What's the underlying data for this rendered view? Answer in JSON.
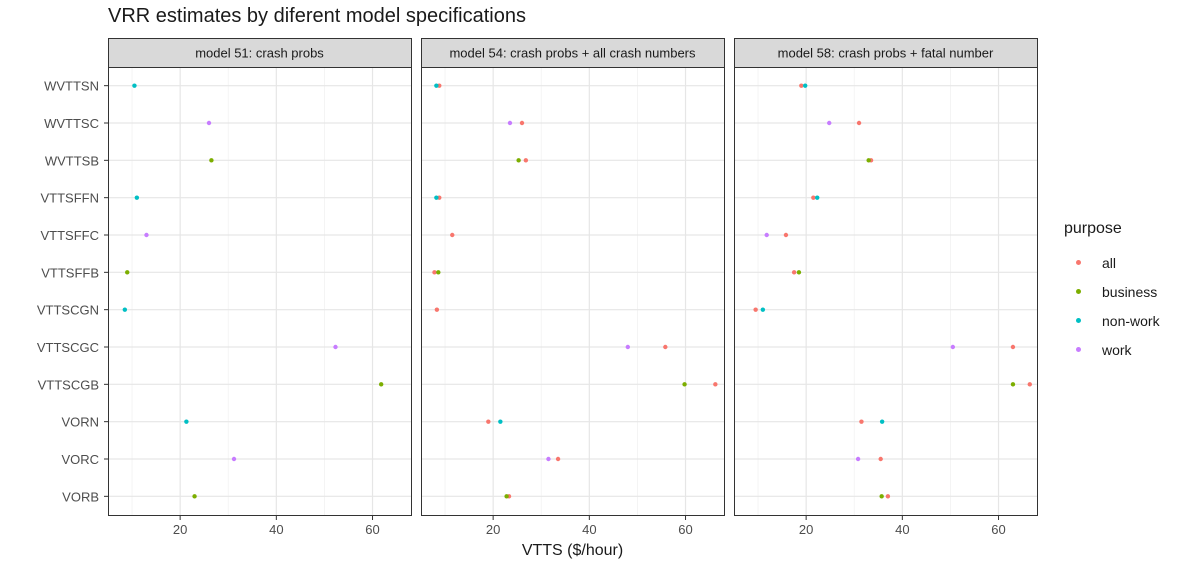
{
  "chart_data": {
    "type": "scatter",
    "title": "VRR estimates by diferent model specifications",
    "xlabel": "VTTS ($/hour)",
    "ylabel": "",
    "xlim": [
      5,
      68
    ],
    "xticks": [
      20,
      40,
      60
    ],
    "categories": [
      "WVTTSN",
      "WVTTSC",
      "WVTTSB",
      "VTTSFFN",
      "VTTSFFC",
      "VTTSFFB",
      "VTTSCGN",
      "VTTSCGC",
      "VTTSCGB",
      "VORN",
      "VORC",
      "VORB"
    ],
    "grid": true,
    "legend": {
      "title": "purpose",
      "position": "right",
      "entries": [
        "all",
        "business",
        "non-work",
        "work"
      ]
    },
    "colors": {
      "all": "#F8766D",
      "business": "#7CAE00",
      "non-work": "#00BFC4",
      "work": "#C77CFF"
    },
    "panels": [
      {
        "title": "model 51: crash probs",
        "points": [
          {
            "y": "WVTTSN",
            "x": 10.5,
            "purpose": "non-work"
          },
          {
            "y": "WVTTSC",
            "x": 26.0,
            "purpose": "work"
          },
          {
            "y": "WVTTSB",
            "x": 26.5,
            "purpose": "business"
          },
          {
            "y": "VTTSFFN",
            "x": 11.0,
            "purpose": "non-work"
          },
          {
            "y": "VTTSFFC",
            "x": 13.0,
            "purpose": "work"
          },
          {
            "y": "VTTSFFB",
            "x": 9.0,
            "purpose": "business"
          },
          {
            "y": "VTTSCGN",
            "x": 8.5,
            "purpose": "non-work"
          },
          {
            "y": "VTTSCGC",
            "x": 52.3,
            "purpose": "work"
          },
          {
            "y": "VTTSCGB",
            "x": 61.8,
            "purpose": "business"
          },
          {
            "y": "VORN",
            "x": 21.3,
            "purpose": "non-work"
          },
          {
            "y": "VORC",
            "x": 31.2,
            "purpose": "work"
          },
          {
            "y": "VORB",
            "x": 23.0,
            "purpose": "business"
          }
        ]
      },
      {
        "title": "model 54: crash probs + all crash numbers",
        "points": [
          {
            "y": "WVTTSN",
            "x": 8.8,
            "purpose": "all"
          },
          {
            "y": "WVTTSN",
            "x": 8.2,
            "purpose": "non-work"
          },
          {
            "y": "WVTTSC",
            "x": 26.0,
            "purpose": "all"
          },
          {
            "y": "WVTTSC",
            "x": 23.5,
            "purpose": "work"
          },
          {
            "y": "WVTTSB",
            "x": 26.8,
            "purpose": "all"
          },
          {
            "y": "WVTTSB",
            "x": 25.3,
            "purpose": "business"
          },
          {
            "y": "VTTSFFN",
            "x": 8.8,
            "purpose": "all"
          },
          {
            "y": "VTTSFFN",
            "x": 8.2,
            "purpose": "non-work"
          },
          {
            "y": "VTTSFFC",
            "x": 11.5,
            "purpose": "all"
          },
          {
            "y": "VTTSFFB",
            "x": 7.8,
            "purpose": "all"
          },
          {
            "y": "VTTSFFB",
            "x": 8.6,
            "purpose": "business"
          },
          {
            "y": "VTTSCGN",
            "x": 8.3,
            "purpose": "all"
          },
          {
            "y": "VTTSCGC",
            "x": 55.8,
            "purpose": "all"
          },
          {
            "y": "VTTSCGC",
            "x": 48.0,
            "purpose": "work"
          },
          {
            "y": "VTTSCGB",
            "x": 66.2,
            "purpose": "all"
          },
          {
            "y": "VTTSCGB",
            "x": 59.8,
            "purpose": "business"
          },
          {
            "y": "VORN",
            "x": 19.0,
            "purpose": "all"
          },
          {
            "y": "VORN",
            "x": 21.5,
            "purpose": "non-work"
          },
          {
            "y": "VORC",
            "x": 33.5,
            "purpose": "all"
          },
          {
            "y": "VORC",
            "x": 31.5,
            "purpose": "work"
          },
          {
            "y": "VORB",
            "x": 23.3,
            "purpose": "all"
          },
          {
            "y": "VORB",
            "x": 22.8,
            "purpose": "business"
          }
        ]
      },
      {
        "title": "model 58: crash probs + fatal number",
        "points": [
          {
            "y": "WVTTSN",
            "x": 19.0,
            "purpose": "all"
          },
          {
            "y": "WVTTSN",
            "x": 19.8,
            "purpose": "non-work"
          },
          {
            "y": "WVTTSC",
            "x": 31.0,
            "purpose": "all"
          },
          {
            "y": "WVTTSC",
            "x": 24.8,
            "purpose": "work"
          },
          {
            "y": "WVTTSB",
            "x": 33.5,
            "purpose": "all"
          },
          {
            "y": "WVTTSB",
            "x": 33.0,
            "purpose": "business"
          },
          {
            "y": "VTTSFFN",
            "x": 21.5,
            "purpose": "all"
          },
          {
            "y": "VTTSFFN",
            "x": 22.3,
            "purpose": "non-work"
          },
          {
            "y": "VTTSFFC",
            "x": 15.8,
            "purpose": "all"
          },
          {
            "y": "VTTSFFC",
            "x": 11.8,
            "purpose": "work"
          },
          {
            "y": "VTTSFFB",
            "x": 17.5,
            "purpose": "all"
          },
          {
            "y": "VTTSFFB",
            "x": 18.5,
            "purpose": "business"
          },
          {
            "y": "VTTSCGN",
            "x": 9.5,
            "purpose": "all"
          },
          {
            "y": "VTTSCGN",
            "x": 11.0,
            "purpose": "non-work"
          },
          {
            "y": "VTTSCGC",
            "x": 63.0,
            "purpose": "all"
          },
          {
            "y": "VTTSCGC",
            "x": 50.5,
            "purpose": "work"
          },
          {
            "y": "VTTSCGB",
            "x": 66.5,
            "purpose": "all"
          },
          {
            "y": "VTTSCGB",
            "x": 63.0,
            "purpose": "business"
          },
          {
            "y": "VORN",
            "x": 31.5,
            "purpose": "all"
          },
          {
            "y": "VORN",
            "x": 35.8,
            "purpose": "non-work"
          },
          {
            "y": "VORC",
            "x": 35.5,
            "purpose": "all"
          },
          {
            "y": "VORC",
            "x": 30.8,
            "purpose": "work"
          },
          {
            "y": "VORB",
            "x": 37.0,
            "purpose": "all"
          },
          {
            "y": "VORB",
            "x": 35.7,
            "purpose": "business"
          }
        ]
      }
    ]
  }
}
